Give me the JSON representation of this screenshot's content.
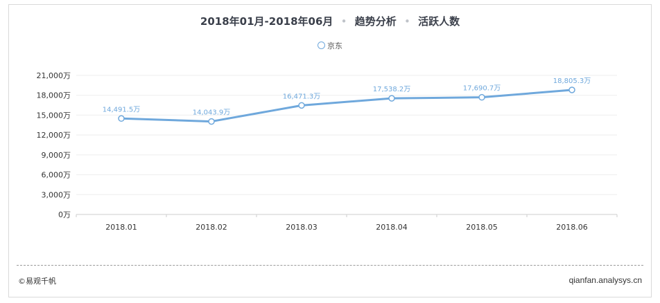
{
  "title": {
    "period": "2018年01月-2018年06月",
    "part2": "趋势分析",
    "part3": "活跃人数",
    "separator": "•"
  },
  "legend": {
    "label": "京东"
  },
  "footer": {
    "source": "©易观千帆",
    "site": "qianfan.analysys.cn"
  },
  "colors": {
    "series": "#6fa8dc",
    "grid": "#eeeeee",
    "axis": "#cccccc"
  },
  "chart_data": {
    "type": "line",
    "categories": [
      "2018.01",
      "2018.02",
      "2018.03",
      "2018.04",
      "2018.05",
      "2018.06"
    ],
    "series": [
      {
        "name": "京东",
        "values": [
          14491.5,
          14043.9,
          16471.3,
          17538.2,
          17690.7,
          18805.3
        ]
      }
    ],
    "data_labels": [
      "14,491.5万",
      "14,043.9万",
      "16,471.3万",
      "17,538.2万",
      "17,690.7万",
      "18,805.3万"
    ],
    "y_ticks": [
      "0万",
      "3,000万",
      "6,000万",
      "9,000万",
      "12,000万",
      "15,000万",
      "18,000万",
      "21,000万"
    ],
    "ylim": [
      0,
      21000
    ],
    "grid": true,
    "legend_position": "top-center"
  }
}
